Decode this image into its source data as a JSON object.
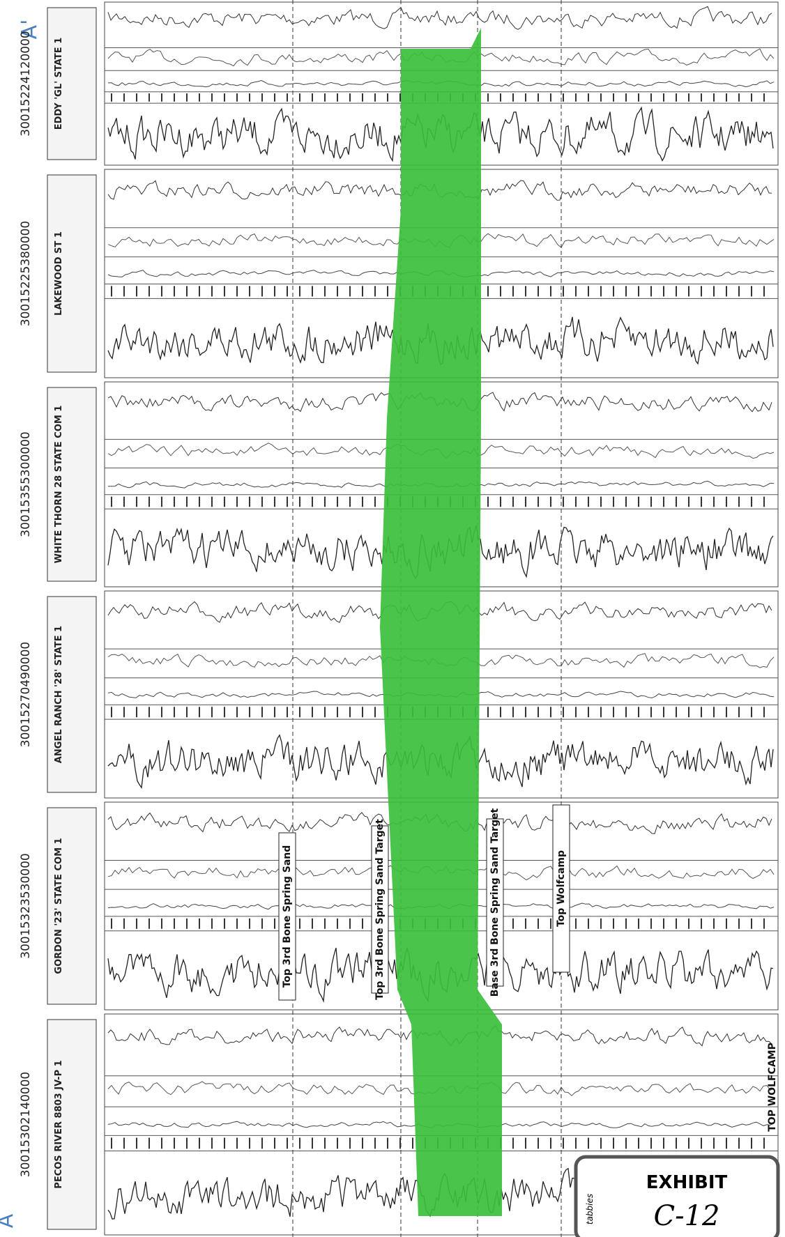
{
  "corner_labels": {
    "start": "A",
    "end": "A'"
  },
  "wells": [
    {
      "api": "30015224120000",
      "name": "EDDY 'GL' STATE 1"
    },
    {
      "api": "30015225380000",
      "name": "LAKEWOOD ST 1"
    },
    {
      "api": "30015355300000",
      "name": "WHITE THORN 28 STATE COM 1"
    },
    {
      "api": "30015270490000",
      "name": "ANGEL RANCH '28' STATE 1"
    },
    {
      "api": "30015323530000",
      "name": "GORDON '23' STATE COM 1"
    },
    {
      "api": "30015302140000",
      "name": "PECOS RIVER 8803 JV-P 1"
    }
  ],
  "markers": [
    "Top 3rd Bone Spring Sand",
    "Top 3rd Bone Spring Sand Target",
    "Base 3rd Bone Spring Sand Target",
    "Top Wolfcamp"
  ],
  "side_marker": "TOP WOLFCAMP",
  "exhibit": {
    "brand": "tabbies",
    "title": "EXHIBIT",
    "number": "C-12"
  }
}
